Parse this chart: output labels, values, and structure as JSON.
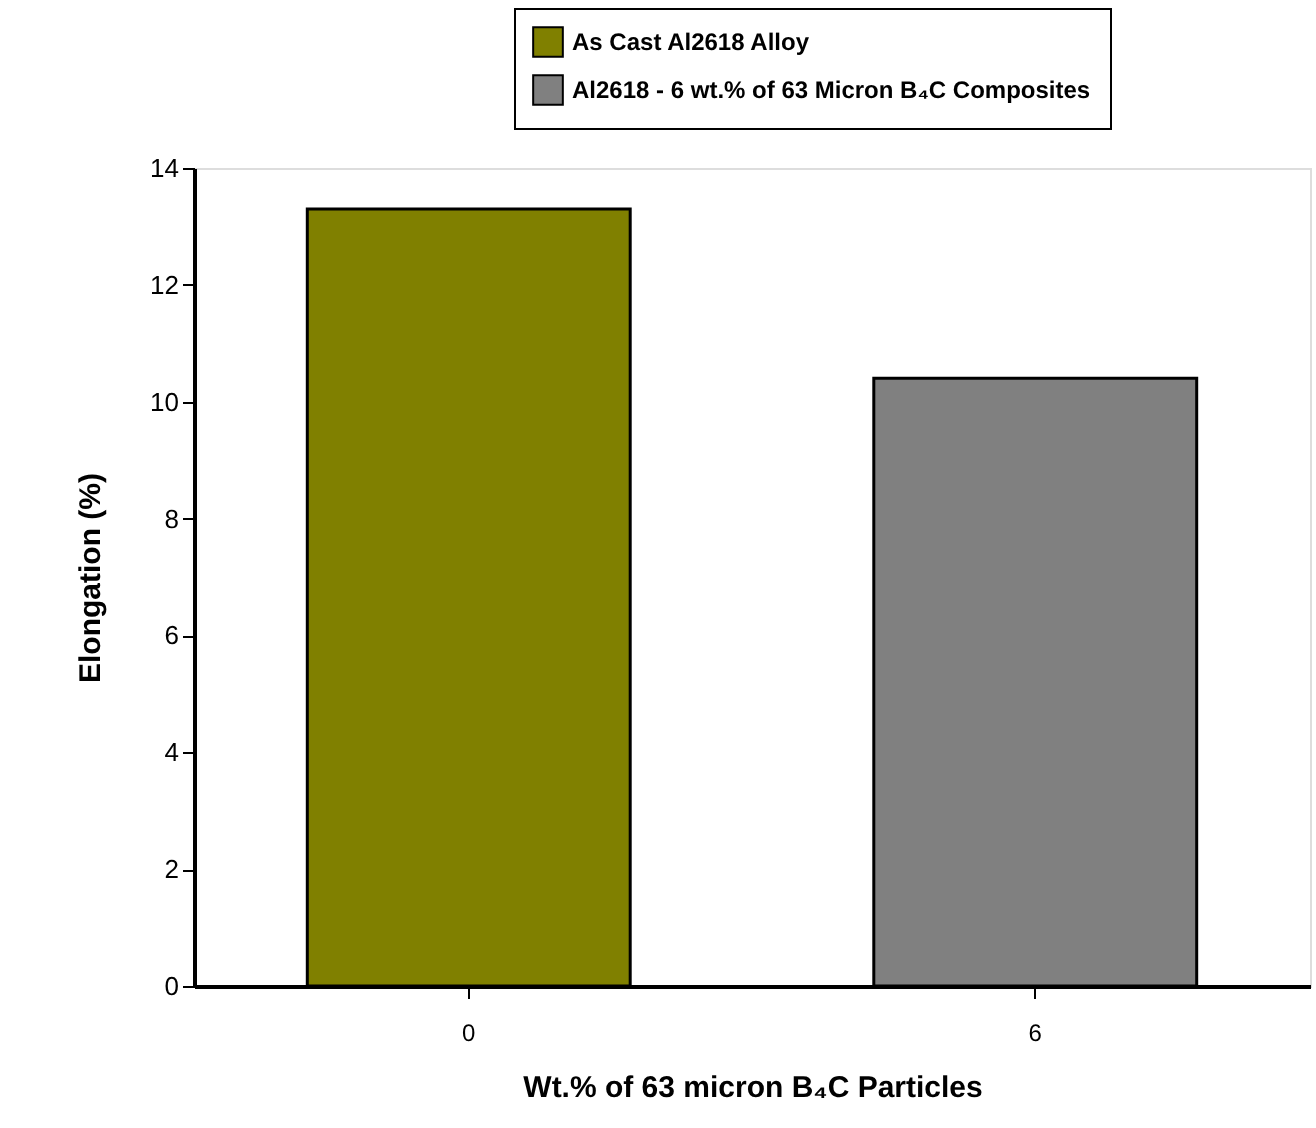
{
  "chart_data": {
    "type": "bar",
    "xlabel": "Wt.% of 63 micron B₄C Particles",
    "ylabel": "Elongation (%)",
    "categories": [
      "0",
      "6"
    ],
    "series": [
      {
        "name": "As Cast Al2618 Alloy",
        "color": "#808000",
        "values": [
          13.3,
          null
        ]
      },
      {
        "name": "Al2618 - 6 wt.% of 63 Micron B₄C Composites",
        "color": "#808080",
        "values": [
          null,
          10.4
        ]
      }
    ],
    "ylim": [
      0,
      14
    ],
    "yticks": [
      0,
      2,
      4,
      6,
      8,
      10,
      12,
      14
    ],
    "grid": false,
    "legend": "top right"
  }
}
